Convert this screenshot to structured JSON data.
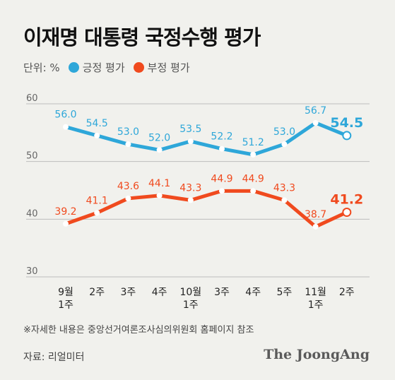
{
  "title": "이재명 대통령 국정수행 평가",
  "legend": {
    "unit": "단위: %",
    "positive_label": "긍정 평가",
    "negative_label": "부정 평가"
  },
  "colors": {
    "positive": "#2ea7d9",
    "negative": "#f04a1e",
    "grid": "#bdbdbd",
    "tick": "#666666"
  },
  "note": "※자세한 내용은 중앙선거여론조사심의위원회 홈페이지 참조",
  "source": "자료: 리얼미터",
  "logo": "The JoongAng",
  "chart_data": {
    "type": "line",
    "categories": [
      [
        "9월",
        "1주"
      ],
      [
        "2주"
      ],
      [
        "3주"
      ],
      [
        "4주"
      ],
      [
        "10월",
        "1주"
      ],
      [
        "3주"
      ],
      [
        "4주"
      ],
      [
        "5주"
      ],
      [
        "11월",
        "1주"
      ],
      [
        "2주"
      ]
    ],
    "series": [
      {
        "name": "긍정 평가",
        "values": [
          56.0,
          54.5,
          53.0,
          52.0,
          53.5,
          52.2,
          51.2,
          53.0,
          56.7,
          54.5
        ]
      },
      {
        "name": "부정 평가",
        "values": [
          39.2,
          41.1,
          43.6,
          44.1,
          43.3,
          44.9,
          44.9,
          43.3,
          38.7,
          41.2
        ]
      }
    ],
    "yticks": [
      30,
      40,
      50,
      60
    ],
    "ylim": [
      30,
      60
    ],
    "grid": true,
    "legend_position": "top-left"
  }
}
